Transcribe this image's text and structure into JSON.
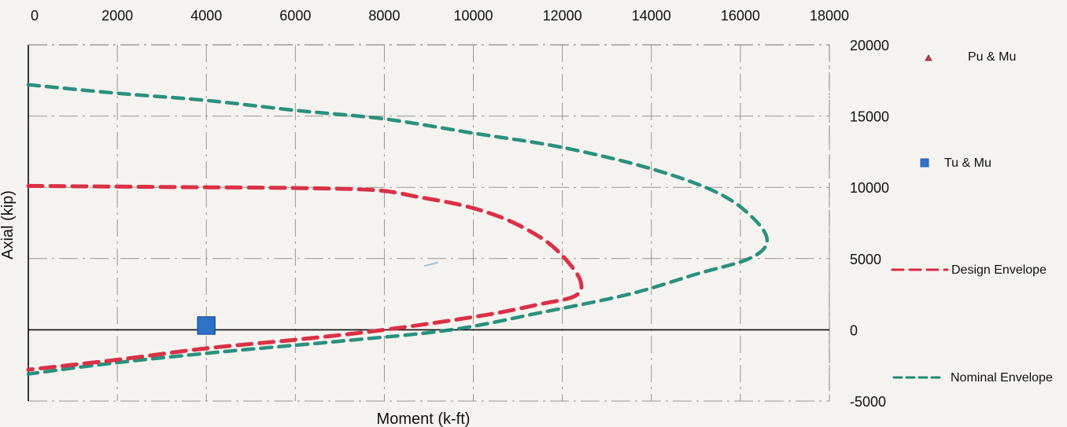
{
  "chart_data": {
    "type": "line",
    "xlabel": "Moment (k-ft)",
    "ylabel": "Axial (kip)",
    "x_ticks": [
      "0",
      "2000",
      "4000",
      "6000",
      "8000",
      "10000",
      "12000",
      "14000",
      "16000",
      "18000"
    ],
    "y_ticks": [
      "20000",
      "15000",
      "10000",
      "5000",
      "0",
      "-5000"
    ],
    "xlim": [
      0,
      18000
    ],
    "ylim": [
      -5000,
      20000
    ],
    "grid": true,
    "legend_position": "right",
    "colors": {
      "nominal": "#1f8a78",
      "design": "#d92d43",
      "pu_mu": "#cf3a47",
      "tu_mu": "#2d71c9",
      "grid": "#8d8d8d",
      "axis": "#111111"
    },
    "legend": [
      {
        "label": "Pu & Mu",
        "kind": "triangle"
      },
      {
        "label": "Tu & Mu",
        "kind": "square"
      },
      {
        "label": "Design Envelope",
        "kind": "dashed-red"
      },
      {
        "label": "Nominal Envelope",
        "kind": "dashed-green"
      }
    ],
    "series": [
      {
        "name": "Nominal Envelope",
        "kind": "line",
        "points": [
          [
            0,
            17200
          ],
          [
            2000,
            16600
          ],
          [
            4000,
            16100
          ],
          [
            6000,
            15400
          ],
          [
            8000,
            14800
          ],
          [
            10000,
            13800
          ],
          [
            12000,
            12800
          ],
          [
            14000,
            11300
          ],
          [
            15500,
            9600
          ],
          [
            16300,
            7800
          ],
          [
            16600,
            6200
          ],
          [
            16200,
            5000
          ],
          [
            15000,
            3900
          ],
          [
            13500,
            2500
          ],
          [
            11500,
            1200
          ],
          [
            9500,
            0
          ],
          [
            7000,
            -800
          ],
          [
            4500,
            -1500
          ],
          [
            2000,
            -2300
          ],
          [
            0,
            -3100
          ]
        ]
      },
      {
        "name": "Design Envelope",
        "kind": "line",
        "points": [
          [
            0,
            10100
          ],
          [
            2000,
            10050
          ],
          [
            4000,
            10000
          ],
          [
            6000,
            9950
          ],
          [
            7800,
            9800
          ],
          [
            8800,
            9300
          ],
          [
            9800,
            8700
          ],
          [
            10700,
            7800
          ],
          [
            11500,
            6500
          ],
          [
            12000,
            5200
          ],
          [
            12400,
            3500
          ],
          [
            12300,
            2400
          ],
          [
            11500,
            1800
          ],
          [
            10200,
            1000
          ],
          [
            8000,
            0
          ],
          [
            6000,
            -700
          ],
          [
            4000,
            -1300
          ],
          [
            2000,
            -2100
          ],
          [
            0,
            -2800
          ]
        ]
      },
      {
        "name": "Tu & Mu",
        "kind": "marker",
        "points": [
          [
            4000,
            300
          ]
        ]
      }
    ]
  }
}
